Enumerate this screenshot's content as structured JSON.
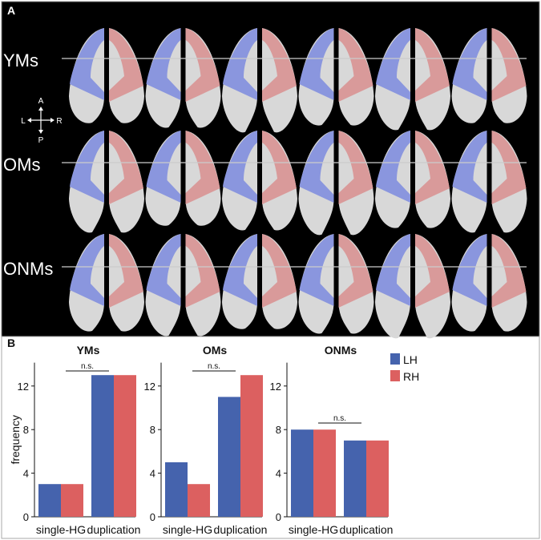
{
  "panel_a": {
    "label": "A",
    "rows": [
      "YMs",
      "OMs",
      "ONMs"
    ],
    "compass": {
      "up": "A",
      "down": "P",
      "left": "L",
      "right": "R"
    },
    "colors": {
      "lh": "#8a96de",
      "rh": "#d99a9a",
      "brain": "#d8d8d8",
      "background": "#000000"
    }
  },
  "panel_b": {
    "label": "B"
  },
  "chart_data": [
    {
      "type": "bar",
      "title": "YMs",
      "ylabel": "frequency",
      "xlabel": "",
      "categories": [
        "single-HG",
        "duplication"
      ],
      "series": [
        {
          "name": "LH",
          "values": [
            3,
            13
          ]
        },
        {
          "name": "RH",
          "values": [
            3,
            13
          ]
        }
      ],
      "ylim": [
        0,
        14
      ],
      "yticks": [
        0,
        4,
        8,
        12
      ],
      "annotation": "n.s."
    },
    {
      "type": "bar",
      "title": "OMs",
      "ylabel": "",
      "xlabel": "",
      "categories": [
        "single-HG",
        "duplication"
      ],
      "series": [
        {
          "name": "LH",
          "values": [
            5,
            11
          ]
        },
        {
          "name": "RH",
          "values": [
            3,
            13
          ]
        }
      ],
      "ylim": [
        0,
        14
      ],
      "yticks": [
        0,
        4,
        8,
        12
      ],
      "annotation": "n.s."
    },
    {
      "type": "bar",
      "title": "ONMs",
      "ylabel": "",
      "xlabel": "",
      "categories": [
        "single-HG",
        "duplication"
      ],
      "series": [
        {
          "name": "LH",
          "values": [
            8,
            7
          ]
        },
        {
          "name": "RH",
          "values": [
            8,
            7
          ]
        }
      ],
      "ylim": [
        0,
        14
      ],
      "yticks": [
        0,
        4,
        8,
        12
      ],
      "annotation": "n.s.",
      "legend": {
        "placement": "top-right",
        "entries": [
          "LH",
          "RH"
        ]
      }
    }
  ],
  "series_colors": {
    "LH": "#4563ad",
    "RH": "#dc6060"
  }
}
